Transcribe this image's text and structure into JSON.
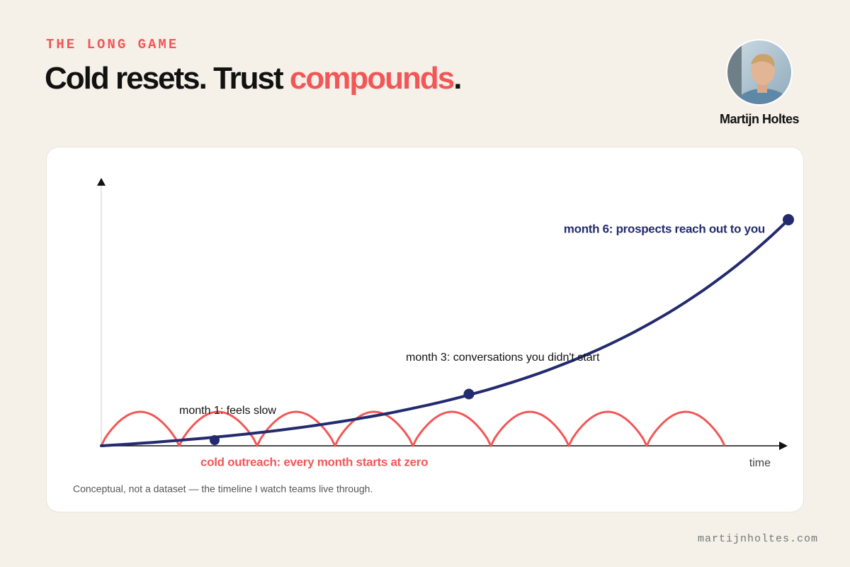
{
  "header": {
    "kicker": "THE LONG GAME",
    "title_parts": [
      "Cold resets. Trust ",
      "compounds",
      "."
    ]
  },
  "author": {
    "name": "Martijn Holtes"
  },
  "chart": {
    "x_axis_label": "time",
    "annotations": [
      "month 1: feels slow",
      "month 3: conversations you didn't start",
      "month 6: prospects reach out to you"
    ],
    "red_label": "cold outreach: every month starts at zero",
    "footnote": "Conceptual, not a dataset — the timeline I watch teams live through."
  },
  "footer": {
    "url": "martijnholtes.com"
  }
}
